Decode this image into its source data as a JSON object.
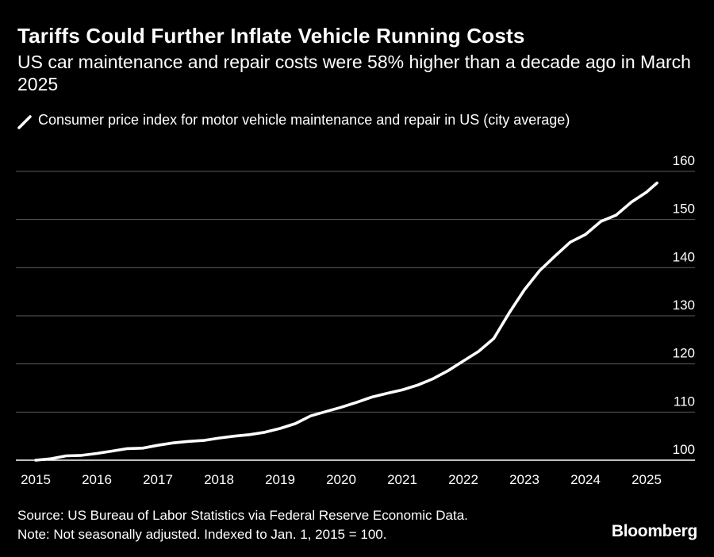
{
  "header": {
    "title": "Tariffs Could Further Inflate Vehicle Running Costs",
    "subtitle": "US car maintenance and repair costs were 58% higher than a decade ago in March 2025"
  },
  "legend": {
    "label": "Consumer price index for motor vehicle maintenance and repair in US (city average)",
    "icon": "line-series-icon"
  },
  "footer": {
    "source": "Source: US Bureau of Labor Statistics via Federal Reserve Economic Data.",
    "note": "Note: Not seasonally adjusted. Indexed to Jan. 1, 2015 = 100.",
    "brand": "Bloomberg"
  },
  "colors": {
    "background": "#000000",
    "line": "#ffffff",
    "gridline": "#5a5a5a",
    "baseline": "#ffffff",
    "text": "#ffffff"
  },
  "chart_data": {
    "type": "line",
    "title": "",
    "xlabel": "",
    "ylabel": "",
    "x_ticks": [
      "2015",
      "2016",
      "2017",
      "2018",
      "2019",
      "2020",
      "2021",
      "2022",
      "2023",
      "2024",
      "2025"
    ],
    "y_ticks": [
      100,
      110,
      120,
      130,
      140,
      150,
      160
    ],
    "xlim": [
      2015.0,
      2025.5
    ],
    "ylim": [
      100,
      160
    ],
    "y_axis_position": "right",
    "grid": "horizontal",
    "legend_position": "top-left",
    "series": [
      {
        "name": "Consumer price index for motor vehicle maintenance and repair in US (city average)",
        "points": [
          [
            2015.0,
            100.0
          ],
          [
            2015.25,
            100.3
          ],
          [
            2015.5,
            100.9
          ],
          [
            2015.75,
            101.0
          ],
          [
            2016.0,
            101.4
          ],
          [
            2016.25,
            101.9
          ],
          [
            2016.5,
            102.4
          ],
          [
            2016.75,
            102.5
          ],
          [
            2017.0,
            103.1
          ],
          [
            2017.25,
            103.6
          ],
          [
            2017.5,
            103.9
          ],
          [
            2017.75,
            104.1
          ],
          [
            2018.0,
            104.6
          ],
          [
            2018.25,
            105.0
          ],
          [
            2018.5,
            105.3
          ],
          [
            2018.75,
            105.8
          ],
          [
            2019.0,
            106.6
          ],
          [
            2019.25,
            107.6
          ],
          [
            2019.5,
            109.2
          ],
          [
            2019.75,
            110.1
          ],
          [
            2020.0,
            111.0
          ],
          [
            2020.25,
            112.0
          ],
          [
            2020.5,
            113.1
          ],
          [
            2020.75,
            113.9
          ],
          [
            2021.0,
            114.6
          ],
          [
            2021.25,
            115.6
          ],
          [
            2021.5,
            116.9
          ],
          [
            2021.75,
            118.6
          ],
          [
            2022.0,
            120.6
          ],
          [
            2022.25,
            122.6
          ],
          [
            2022.5,
            125.3
          ],
          [
            2022.75,
            130.6
          ],
          [
            2023.0,
            135.4
          ],
          [
            2023.25,
            139.4
          ],
          [
            2023.5,
            142.4
          ],
          [
            2023.75,
            145.3
          ],
          [
            2024.0,
            146.9
          ],
          [
            2024.25,
            149.6
          ],
          [
            2024.5,
            150.9
          ],
          [
            2024.75,
            153.6
          ],
          [
            2025.0,
            155.7
          ],
          [
            2025.17,
            157.6
          ]
        ]
      }
    ]
  }
}
